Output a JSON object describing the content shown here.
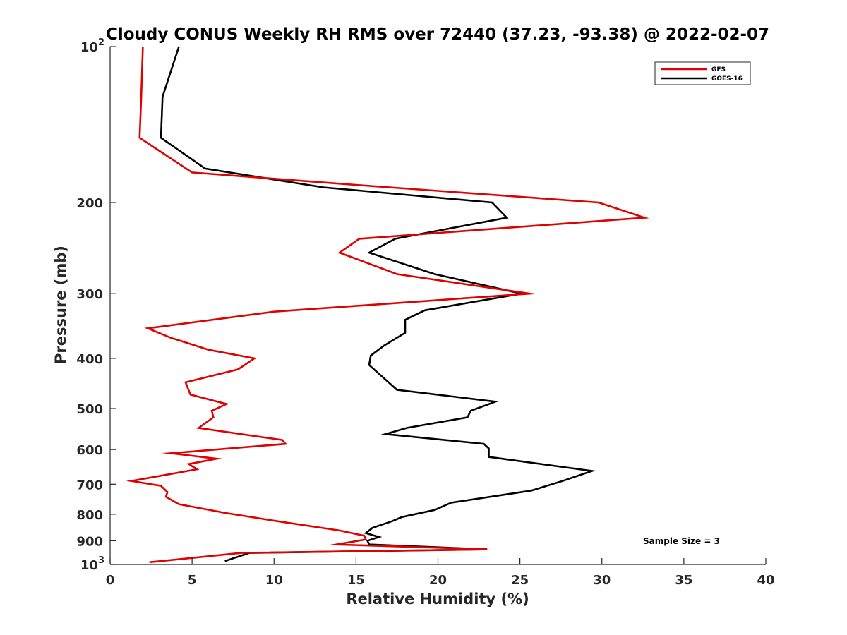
{
  "chart_data": {
    "type": "line",
    "title": "Cloudy CONUS Weekly RH RMS over 72440 (37.23, -93.38) @ 2022-02-07",
    "xlabel": "Relative Humidity (%)",
    "ylabel": "Pressure (mb)",
    "xlim": [
      0,
      40
    ],
    "ylim": [
      100,
      1000
    ],
    "y_scale": "log",
    "y_reversed": true,
    "grid": false,
    "legend_position": "top-right",
    "x_ticks": [
      0,
      5,
      10,
      15,
      20,
      25,
      30,
      35,
      40
    ],
    "y_ticks": [
      {
        "value": 100,
        "base": "10",
        "exp": "2"
      },
      {
        "value": 200,
        "label": "200"
      },
      {
        "value": 300,
        "label": "300"
      },
      {
        "value": 400,
        "label": "400"
      },
      {
        "value": 500,
        "label": "500"
      },
      {
        "value": 600,
        "label": "600"
      },
      {
        "value": 700,
        "label": "700"
      },
      {
        "value": 800,
        "label": "800"
      },
      {
        "value": 900,
        "label": "900"
      },
      {
        "value": 1000,
        "base": "10",
        "exp": "3"
      }
    ],
    "annotation": "Sample Size = 3",
    "series": [
      {
        "name": "GFS",
        "color": "#e00000",
        "points": [
          [
            2.0,
            100
          ],
          [
            1.9,
            125
          ],
          [
            1.8,
            150
          ],
          [
            5.0,
            175
          ],
          [
            15.0,
            185
          ],
          [
            29.8,
            200
          ],
          [
            32.6,
            214
          ],
          [
            15.2,
            235
          ],
          [
            14.0,
            250
          ],
          [
            17.5,
            275
          ],
          [
            25.6,
            300
          ],
          [
            10.0,
            325
          ],
          [
            2.3,
            350
          ],
          [
            3.7,
            365
          ],
          [
            6.0,
            385
          ],
          [
            8.8,
            400
          ],
          [
            7.8,
            420
          ],
          [
            4.6,
            445
          ],
          [
            4.9,
            470
          ],
          [
            7.1,
            490
          ],
          [
            6.2,
            505
          ],
          [
            6.3,
            520
          ],
          [
            5.4,
            545
          ],
          [
            10.5,
            575
          ],
          [
            10.7,
            585
          ],
          [
            3.7,
            610
          ],
          [
            6.5,
            625
          ],
          [
            4.8,
            640
          ],
          [
            5.3,
            655
          ],
          [
            1.3,
            690
          ],
          [
            3.1,
            705
          ],
          [
            3.5,
            725
          ],
          [
            3.4,
            740
          ],
          [
            4.2,
            765
          ],
          [
            7.0,
            795
          ],
          [
            10.2,
            825
          ],
          [
            14.0,
            860
          ],
          [
            15.5,
            880
          ],
          [
            15.6,
            895
          ],
          [
            13.8,
            915
          ],
          [
            23.0,
            935
          ],
          [
            8.0,
            950
          ],
          [
            2.4,
            990
          ]
        ]
      },
      {
        "name": "GOES-16",
        "color": "#000000",
        "points": [
          [
            4.2,
            100
          ],
          [
            3.2,
            125
          ],
          [
            3.1,
            150
          ],
          [
            5.8,
            172
          ],
          [
            13.0,
            187
          ],
          [
            23.3,
            200
          ],
          [
            24.2,
            214
          ],
          [
            17.4,
            235
          ],
          [
            15.8,
            250
          ],
          [
            19.8,
            275
          ],
          [
            25.1,
            300
          ],
          [
            19.2,
            323
          ],
          [
            18.0,
            337
          ],
          [
            18.0,
            357
          ],
          [
            16.7,
            378
          ],
          [
            15.9,
            395
          ],
          [
            15.8,
            412
          ],
          [
            17.5,
            460
          ],
          [
            23.5,
            485
          ],
          [
            22.0,
            505
          ],
          [
            21.8,
            520
          ],
          [
            18.1,
            545
          ],
          [
            16.8,
            560
          ],
          [
            22.8,
            585
          ],
          [
            23.1,
            597
          ],
          [
            23.1,
            620
          ],
          [
            29.4,
            660
          ],
          [
            27.6,
            690
          ],
          [
            25.7,
            720
          ],
          [
            20.8,
            760
          ],
          [
            19.8,
            785
          ],
          [
            17.8,
            810
          ],
          [
            17.2,
            825
          ],
          [
            16.0,
            850
          ],
          [
            15.6,
            870
          ],
          [
            16.4,
            885
          ],
          [
            15.7,
            900
          ],
          [
            15.8,
            915
          ],
          [
            23.0,
            935
          ],
          [
            8.5,
            950
          ],
          [
            7.0,
            985
          ]
        ]
      }
    ]
  }
}
